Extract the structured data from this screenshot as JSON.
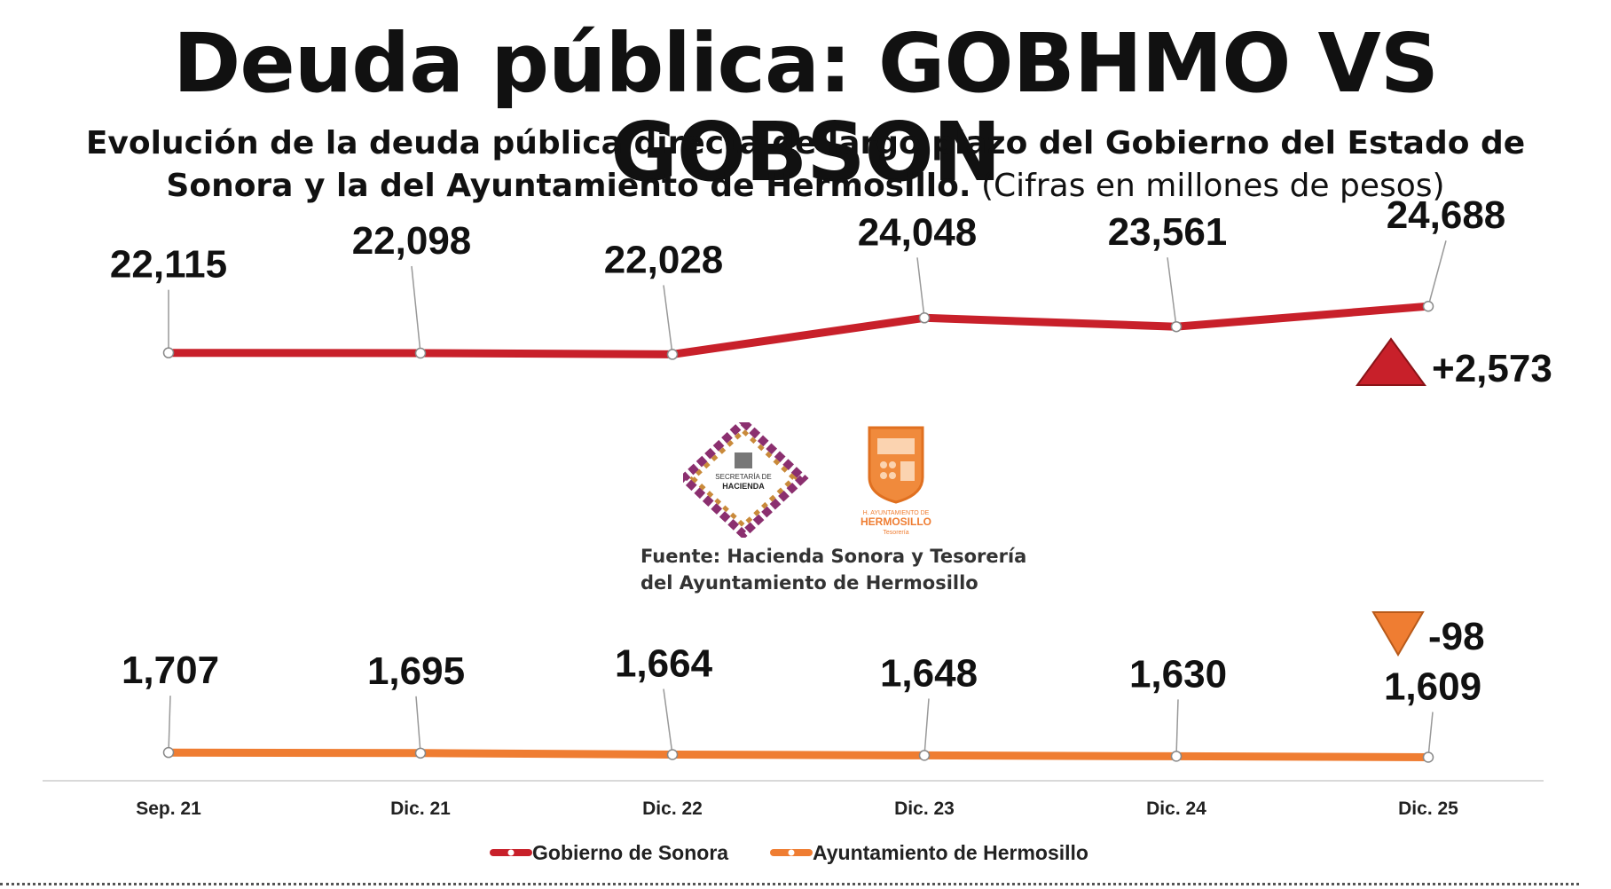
{
  "title": "Deuda pública: GOBHMO VS GOBSON",
  "subtitle_bold": "Evolución de la deuda pública directa de largo plazo del Gobierno del Estado de Sonora y la del Ayuntamiento de Hermosillo.",
  "subtitle_normal": " (Cifras en millones de pesos)",
  "source": "Fuente: Hacienda Sonora y Tesorería del Ayuntamiento de Hermosillo",
  "logos": {
    "hacienda_text": [
      "SECRETARÍA DE",
      "HACIENDA"
    ],
    "hermosillo_text": [
      "H. AYUNTAMIENTO DE",
      "HERMOSILLO",
      "Tesorería"
    ]
  },
  "colors": {
    "sonora": "#c8202a",
    "hermosillo": "#ef7d32",
    "up_triangle": "#c8202a",
    "down_triangle": "#ef7d32"
  },
  "chart_data": {
    "type": "line",
    "categories": [
      "Sep. 21",
      "Dic. 21",
      "Dic. 22",
      "Dic. 23",
      "Dic. 24",
      "Dic. 25"
    ],
    "series": [
      {
        "name": "Gobierno de Sonora",
        "values": [
          22115,
          22098,
          22028,
          24048,
          23561,
          24688
        ],
        "labels": [
          "22,115",
          "22,098",
          "22,028",
          "24,048",
          "23,561",
          "24,688"
        ],
        "change": "+2,573"
      },
      {
        "name": "Ayuntamiento de Hermosillo",
        "values": [
          1707,
          1695,
          1664,
          1648,
          1630,
          1609
        ],
        "labels": [
          "1,707",
          "1,695",
          "1,664",
          "1,648",
          "1,630",
          "1,609"
        ],
        "change": "-98"
      }
    ],
    "grid": false,
    "legend": "bottom-center"
  }
}
